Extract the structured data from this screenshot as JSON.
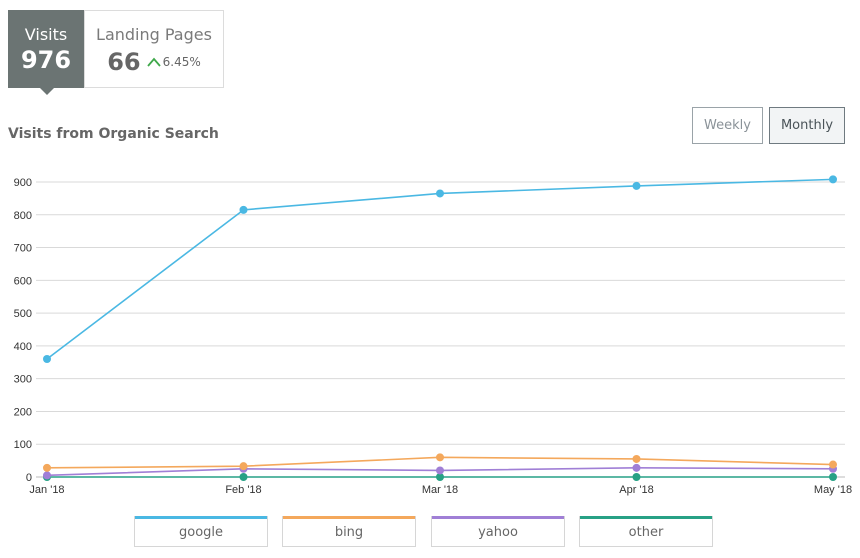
{
  "stats": {
    "visits": {
      "label": "Visits",
      "value": "976"
    },
    "landing": {
      "label": "Landing Pages",
      "value": "66",
      "change": "6.45%"
    }
  },
  "toggle": {
    "weekly": "Weekly",
    "monthly": "Monthly",
    "selected": "Monthly"
  },
  "chart_data": {
    "type": "line",
    "title": "Visits from Organic Search",
    "xlabel": "",
    "ylabel": "",
    "ylim": [
      0,
      900
    ],
    "yticks": [
      0,
      100,
      200,
      300,
      400,
      500,
      600,
      700,
      800,
      900
    ],
    "grid": true,
    "legend_position": "bottom",
    "categories": [
      "Jan '18",
      "Feb '18",
      "Mar '18",
      "Apr '18",
      "May '18"
    ],
    "series": [
      {
        "name": "google",
        "color": "#4ab8e3",
        "values": [
          360,
          815,
          865,
          888,
          908
        ]
      },
      {
        "name": "bing",
        "color": "#f4a85c",
        "values": [
          28,
          33,
          60,
          55,
          38
        ]
      },
      {
        "name": "yahoo",
        "color": "#a07fd6",
        "values": [
          5,
          25,
          20,
          28,
          25
        ]
      },
      {
        "name": "other",
        "color": "#27a185",
        "values": [
          0,
          0,
          0,
          0,
          0
        ]
      }
    ]
  }
}
